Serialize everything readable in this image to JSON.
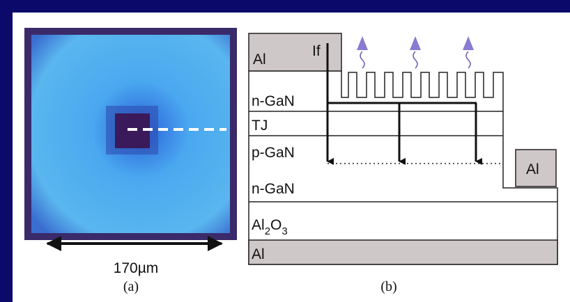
{
  "panel_a": {
    "scale_label": "170µm",
    "caption": "(a)"
  },
  "panel_b": {
    "caption": "(b)",
    "layers": {
      "top_contact": "Al",
      "current": "If",
      "n_gan_top": "n-GaN",
      "tj": "TJ",
      "p_gan": "p-GaN",
      "n_gan_bottom": "n-GaN",
      "substrate": [
        "Al",
        "2",
        "O",
        "3"
      ],
      "bottom_contact": "Al",
      "side_contact": "Al"
    }
  }
}
